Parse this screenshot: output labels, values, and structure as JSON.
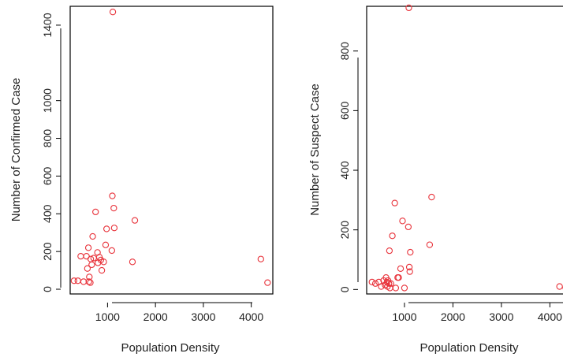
{
  "chart_data": [
    {
      "type": "scatter",
      "xlabel": "Population Density",
      "ylabel": "Number of Confirmed Case",
      "xlim": [
        220,
        4450
      ],
      "ylim": [
        -25,
        1500
      ],
      "xticks": [
        1000,
        2000,
        3000,
        4000
      ],
      "yticks": [
        0,
        200,
        400,
        600,
        800,
        1000,
        1400
      ],
      "points": [
        {
          "x": 300,
          "y": 45
        },
        {
          "x": 380,
          "y": 45
        },
        {
          "x": 440,
          "y": 175
        },
        {
          "x": 500,
          "y": 40
        },
        {
          "x": 560,
          "y": 175
        },
        {
          "x": 580,
          "y": 110
        },
        {
          "x": 600,
          "y": 220
        },
        {
          "x": 610,
          "y": 40
        },
        {
          "x": 620,
          "y": 65
        },
        {
          "x": 640,
          "y": 35
        },
        {
          "x": 650,
          "y": 160
        },
        {
          "x": 670,
          "y": 130
        },
        {
          "x": 690,
          "y": 280
        },
        {
          "x": 710,
          "y": 165
        },
        {
          "x": 750,
          "y": 410
        },
        {
          "x": 790,
          "y": 195
        },
        {
          "x": 800,
          "y": 140
        },
        {
          "x": 830,
          "y": 170
        },
        {
          "x": 860,
          "y": 155
        },
        {
          "x": 880,
          "y": 100
        },
        {
          "x": 920,
          "y": 145
        },
        {
          "x": 960,
          "y": 235
        },
        {
          "x": 980,
          "y": 320
        },
        {
          "x": 1090,
          "y": 205
        },
        {
          "x": 1100,
          "y": 495
        },
        {
          "x": 1110,
          "y": 1470
        },
        {
          "x": 1130,
          "y": 430
        },
        {
          "x": 1140,
          "y": 325
        },
        {
          "x": 1520,
          "y": 145
        },
        {
          "x": 1570,
          "y": 365
        },
        {
          "x": 4200,
          "y": 160
        },
        {
          "x": 4340,
          "y": 35
        }
      ]
    },
    {
      "type": "scatter",
      "xlabel": "Population Density",
      "ylabel": "Number of Suspect Case",
      "xlim": [
        220,
        4450
      ],
      "ylim": [
        -15,
        950
      ],
      "xticks": [
        1000,
        2000,
        3000,
        4000
      ],
      "yticks": [
        0,
        200,
        400,
        600,
        800
      ],
      "points": [
        {
          "x": 330,
          "y": 25
        },
        {
          "x": 400,
          "y": 20
        },
        {
          "x": 470,
          "y": 25
        },
        {
          "x": 520,
          "y": 10
        },
        {
          "x": 570,
          "y": 30
        },
        {
          "x": 600,
          "y": 15
        },
        {
          "x": 620,
          "y": 40
        },
        {
          "x": 640,
          "y": 25
        },
        {
          "x": 650,
          "y": 10
        },
        {
          "x": 660,
          "y": 30
        },
        {
          "x": 680,
          "y": 20
        },
        {
          "x": 690,
          "y": 130
        },
        {
          "x": 700,
          "y": 5
        },
        {
          "x": 720,
          "y": 20
        },
        {
          "x": 750,
          "y": 180
        },
        {
          "x": 800,
          "y": 290
        },
        {
          "x": 820,
          "y": 5
        },
        {
          "x": 860,
          "y": 40
        },
        {
          "x": 880,
          "y": 40
        },
        {
          "x": 920,
          "y": 70
        },
        {
          "x": 960,
          "y": 230
        },
        {
          "x": 1000,
          "y": 5
        },
        {
          "x": 1080,
          "y": 210
        },
        {
          "x": 1100,
          "y": 75
        },
        {
          "x": 1110,
          "y": 60
        },
        {
          "x": 1120,
          "y": 125
        },
        {
          "x": 1090,
          "y": 945
        },
        {
          "x": 1520,
          "y": 150
        },
        {
          "x": 1560,
          "y": 310
        },
        {
          "x": 4200,
          "y": 10
        },
        {
          "x": 4330,
          "y": 5
        }
      ]
    }
  ]
}
